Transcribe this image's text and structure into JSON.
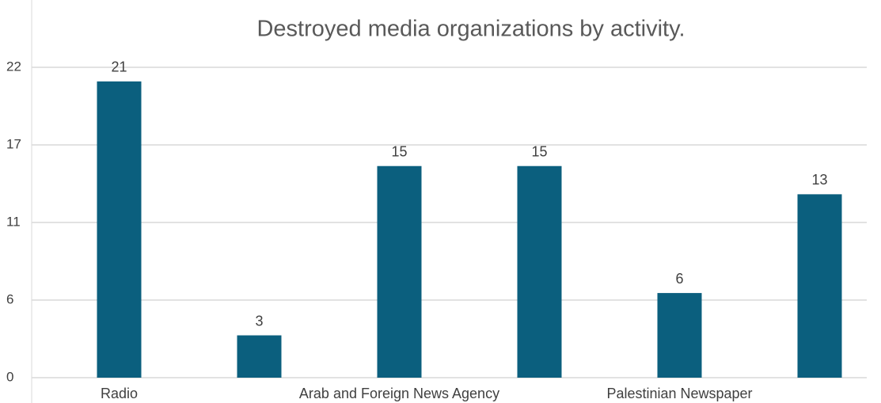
{
  "chart_data": {
    "type": "bar",
    "title": "Destroyed media organizations  by activity.",
    "categories": [
      "Radio",
      null,
      "Arab and Foreign News Agency",
      null,
      "Palestinian Newspaper",
      null
    ],
    "values": [
      21,
      3,
      15,
      15,
      6,
      13
    ],
    "color": "#0b5f7e",
    "ylim": [
      0,
      22
    ],
    "yticks": [
      0,
      {
        "value": 5.5,
        "label": "6"
      },
      11,
      {
        "value": 16.5,
        "label": "17"
      },
      22
    ],
    "grid": true
  }
}
